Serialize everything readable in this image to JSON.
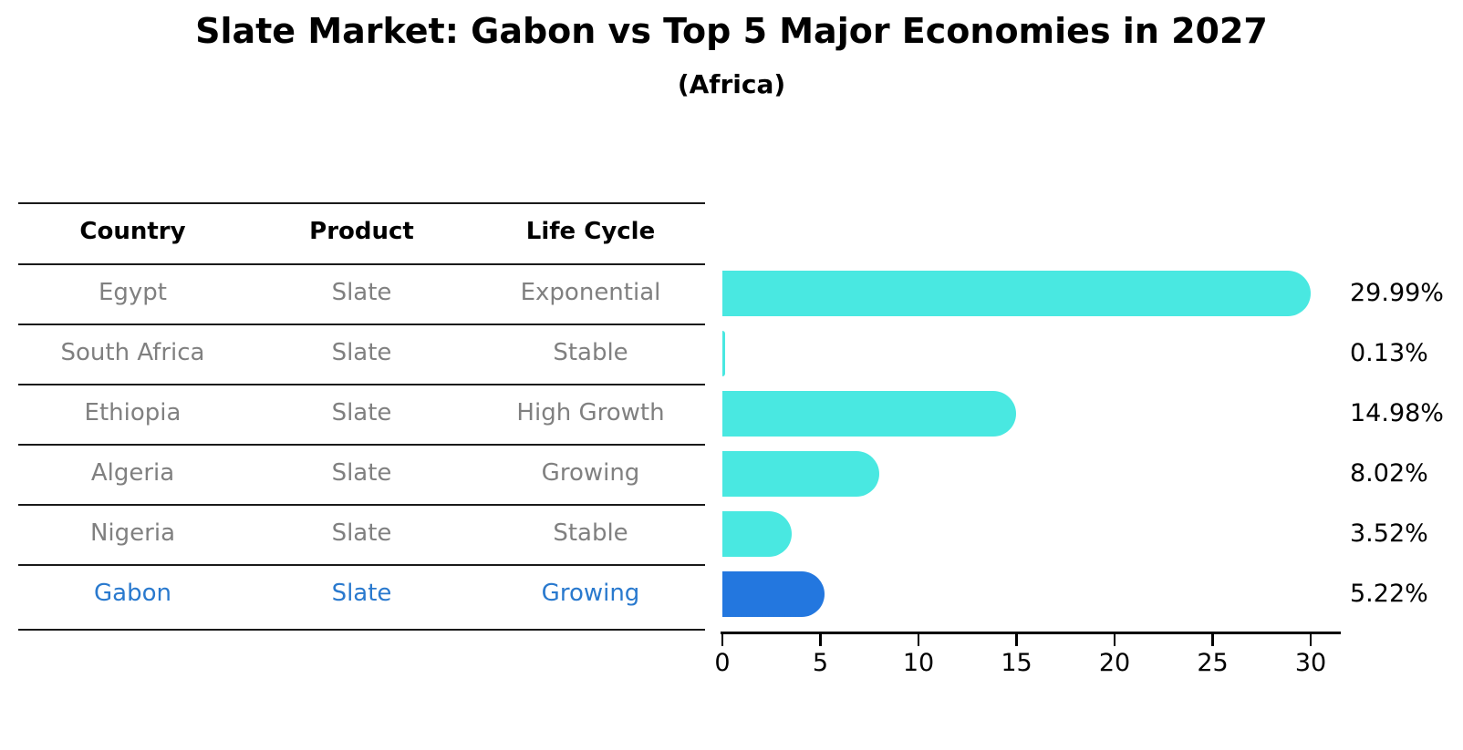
{
  "title": "Slate Market: Gabon vs Top 5 Major Economies in 2027",
  "subtitle": "(Africa)",
  "table": {
    "headers": [
      "Country",
      "Product",
      "Life Cycle"
    ],
    "rows": [
      {
        "country": "Egypt",
        "product": "Slate",
        "life_cycle": "Exponential",
        "highlighted": false
      },
      {
        "country": "South Africa",
        "product": "Slate",
        "life_cycle": "Stable",
        "highlighted": false
      },
      {
        "country": "Ethiopia",
        "product": "Slate",
        "life_cycle": "High Growth",
        "highlighted": false
      },
      {
        "country": "Algeria",
        "product": "Slate",
        "life_cycle": "Growing",
        "highlighted": false
      },
      {
        "country": "Nigeria",
        "product": "Slate",
        "life_cycle": "Stable",
        "highlighted": false
      },
      {
        "country": "Gabon",
        "product": "Slate",
        "life_cycle": "Growing",
        "highlighted": true
      }
    ]
  },
  "chart_data": {
    "type": "bar",
    "orientation": "horizontal",
    "title": "Slate Market: Gabon vs Top 5 Major Economies in 2027",
    "subtitle": "(Africa)",
    "categories": [
      "Egypt",
      "South Africa",
      "Ethiopia",
      "Algeria",
      "Nigeria",
      "Gabon"
    ],
    "values": [
      29.99,
      0.13,
      14.98,
      8.02,
      3.52,
      5.22
    ],
    "value_labels": [
      "29.99%",
      "0.13%",
      "14.98%",
      "8.02%",
      "3.52%",
      "5.22%"
    ],
    "unit": "percent",
    "highlight_category": "Gabon",
    "xlabel": "",
    "ylabel": "",
    "xlim": [
      0,
      31.5
    ],
    "x_ticks": [
      0,
      5,
      10,
      15,
      20,
      25,
      30
    ],
    "grid": false,
    "legend": false
  },
  "colors": {
    "bar": "#49E8E1",
    "highlight_bar": "#2377DF",
    "highlight_bar_border": "#2377DF",
    "row_text": "#808080",
    "highlight_row_text": "#2979CE",
    "header_text": "#000000",
    "value_label": "#000000",
    "table_line": "#1a1a1a",
    "axis": "#000000",
    "background": "#ffffff"
  }
}
